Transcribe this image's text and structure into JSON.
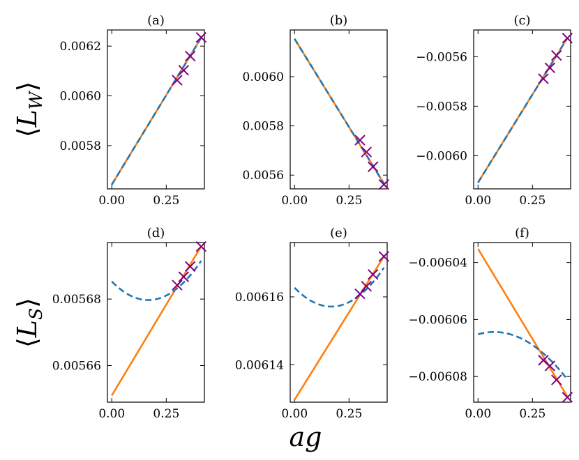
{
  "figure": {
    "xlabel": "ag",
    "row_labels": [
      "⟨L_W⟩",
      "⟨L_S⟩"
    ],
    "row_label_main": "L",
    "row_label_subs": [
      "W",
      "S"
    ]
  },
  "colors": {
    "fit_linear": "#ff7f0e",
    "fit_quadratic": "#1f77b4",
    "points": "#800080",
    "axes": "#000000"
  },
  "chart_data": [
    {
      "type": "line",
      "panel": "a",
      "title": "(a)",
      "xlim": [
        -0.02,
        0.425
      ],
      "ylim": [
        0.005626,
        0.006265
      ],
      "xticks": [
        0.0,
        0.25
      ],
      "xtick_labels": [
        "0.00",
        "0.25"
      ],
      "yticks": [
        0.0058,
        0.006,
        0.0062
      ],
      "ytick_labels": [
        "0.0058",
        "0.0060",
        "0.0062"
      ],
      "points": {
        "x": [
          0.3,
          0.33,
          0.36,
          0.41
        ],
        "y": [
          0.006063,
          0.006103,
          0.00616,
          0.006235
        ]
      },
      "series": [
        {
          "name": "linear fit",
          "style": "solid",
          "color": "#ff7f0e",
          "coeffs": [
            0.0056431,
            0.00144,
            0.0
          ]
        },
        {
          "name": "quadratic fit",
          "style": "dashed",
          "color": "#1f77b4",
          "coeffs": [
            0.0056431,
            0.00144,
            0.0
          ]
        }
      ]
    },
    {
      "type": "line",
      "panel": "b",
      "title": "(b)",
      "xlim": [
        -0.02,
        0.425
      ],
      "ylim": [
        0.005544,
        0.00619
      ],
      "xticks": [
        0.0,
        0.25
      ],
      "xtick_labels": [
        "0.00",
        "0.25"
      ],
      "yticks": [
        0.0056,
        0.0058,
        0.006
      ],
      "ytick_labels": [
        "0.0056",
        "0.0058",
        "0.0060"
      ],
      "points": {
        "x": [
          0.3,
          0.33,
          0.36,
          0.41
        ],
        "y": [
          0.005742,
          0.005694,
          0.005634,
          0.005562
        ]
      },
      "series": [
        {
          "name": "linear fit",
          "style": "solid",
          "color": "#ff7f0e",
          "coeffs": [
            0.0061541,
            -0.001435,
            0.0
          ]
        },
        {
          "name": "quadratic fit",
          "style": "dashed",
          "color": "#1f77b4",
          "coeffs": [
            0.0061541,
            -0.001435,
            0.0
          ]
        }
      ]
    },
    {
      "type": "line",
      "panel": "c",
      "title": "(c)",
      "xlim": [
        -0.02,
        0.425
      ],
      "ylim": [
        -0.006134,
        -0.005492
      ],
      "xticks": [
        0.0,
        0.25
      ],
      "xtick_labels": [
        "0.00",
        "0.25"
      ],
      "yticks": [
        -0.006,
        -0.0058,
        -0.0056
      ],
      "ytick_labels": [
        "−0.0060",
        "−0.0058",
        "−0.0056"
      ],
      "points": {
        "x": [
          0.3,
          0.33,
          0.36,
          0.41
        ],
        "y": [
          -0.005689,
          -0.005645,
          -0.005595,
          -0.005525
        ]
      },
      "series": [
        {
          "name": "linear fit",
          "style": "solid",
          "color": "#ff7f0e",
          "coeffs": [
            -0.0061087,
            0.001425,
            0.0
          ]
        },
        {
          "name": "quadratic fit",
          "style": "dashed",
          "color": "#1f77b4",
          "coeffs": [
            -0.0061087,
            0.001425,
            0.0
          ]
        }
      ]
    },
    {
      "type": "line",
      "panel": "d",
      "title": "(d)",
      "xlim": [
        -0.02,
        0.425
      ],
      "ylim": [
        0.005649,
        0.005697
      ],
      "xticks": [
        0.0,
        0.25
      ],
      "xtick_labels": [
        "0.00",
        "0.25"
      ],
      "yticks": [
        0.00566,
        0.00568
      ],
      "ytick_labels": [
        "0.00566",
        "0.00568"
      ],
      "points": {
        "x": [
          0.3,
          0.33,
          0.36,
          0.41
        ],
        "y": [
          0.0056842,
          0.0056867,
          0.0056898,
          0.0056958
        ]
      },
      "series": [
        {
          "name": "linear fit",
          "style": "solid",
          "color": "#ff7f0e",
          "coeffs": [
            0.005651,
            0.0001094,
            0.0
          ]
        },
        {
          "name": "quadratic fit",
          "style": "dashed",
          "color": "#1f77b4",
          "coeffs": [
            0.0056853,
            -6.7e-05,
            0.0002003
          ]
        }
      ]
    },
    {
      "type": "line",
      "panel": "e",
      "title": "(e)",
      "xlim": [
        -0.02,
        0.425
      ],
      "ylim": [
        0.006129,
        0.006176
      ],
      "xticks": [
        0.0,
        0.25
      ],
      "xtick_labels": [
        "0.00",
        "0.25"
      ],
      "yticks": [
        0.00614,
        0.00616
      ],
      "ytick_labels": [
        "0.00614",
        "0.00616"
      ],
      "points": {
        "x": [
          0.3,
          0.33,
          0.36,
          0.41
        ],
        "y": [
          0.0061609,
          0.0061631,
          0.0061666,
          0.0061719
        ]
      },
      "series": [
        {
          "name": "linear fit",
          "style": "solid",
          "color": "#ff7f0e",
          "coeffs": [
            0.0061297,
            0.000103,
            0.0
          ]
        },
        {
          "name": "quadratic fit",
          "style": "dashed",
          "color": "#1f77b4",
          "coeffs": [
            0.0061627,
            -6.6e-05,
            0.000196
          ]
        }
      ]
    },
    {
      "type": "line",
      "panel": "f",
      "title": "(f)",
      "xlim": [
        -0.02,
        0.425
      ],
      "ylim": [
        -0.006089,
        -0.006033
      ],
      "xticks": [
        0.0,
        0.25
      ],
      "xtick_labels": [
        "0.00",
        "0.25"
      ],
      "yticks": [
        -0.00608,
        -0.00606,
        -0.00604
      ],
      "ytick_labels": [
        "−0.00608",
        "−0.00606",
        "−0.00604"
      ],
      "points": {
        "x": [
          0.3,
          0.33,
          0.36,
          0.41
        ],
        "y": [
          -0.0060743,
          -0.0060763,
          -0.0060812,
          -0.0060873
        ]
      },
      "series": [
        {
          "name": "linear fit",
          "style": "solid",
          "color": "#ff7f0e",
          "coeffs": [
            -0.0060352,
            -0.0001264,
            0.0
          ]
        },
        {
          "name": "quadratic fit",
          "style": "dashed",
          "color": "#1f77b4",
          "coeffs": [
            -0.0060652,
            2.2e-05,
            -0.000148
          ]
        }
      ]
    }
  ]
}
